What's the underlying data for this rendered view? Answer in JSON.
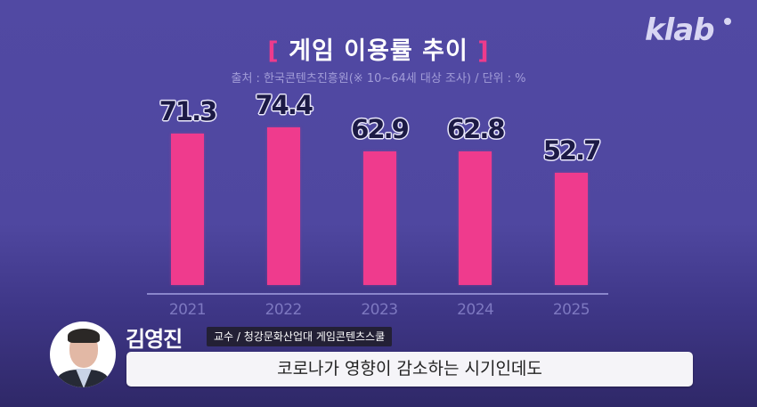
{
  "brand": {
    "logo_text": "klab"
  },
  "header": {
    "title_open_bracket": "[",
    "title": "게임 이용률 추이",
    "title_close_bracket": "]",
    "subtitle": "출처 : 한국콘텐츠진흥원(※ 10~64세 대상 조사) / 단위 : %"
  },
  "colors": {
    "background": "#5149a3",
    "bar": "#ef3b8d",
    "accent_bracket": "#ee3b8c",
    "axis": "#8a86cc",
    "value_label": "#1c1a45"
  },
  "chart_data": {
    "type": "bar",
    "title": "게임 이용률 추이",
    "subtitle": "출처 : 한국콘텐츠진흥원(※ 10~64세 대상 조사) / 단위 : %",
    "categories": [
      "2021",
      "2022",
      "2023",
      "2024",
      "2025"
    ],
    "values": [
      71.3,
      74.4,
      62.9,
      62.8,
      52.7
    ],
    "value_labels": [
      "71.3",
      "74.4",
      "62.9",
      "62.8",
      "52.7"
    ],
    "xlabel": "",
    "ylabel": "%",
    "grid": false,
    "legend": null,
    "unit": "%"
  },
  "speaker": {
    "name": "김영진",
    "role": "교수 / 청강문화산업대 게임콘텐츠스쿨"
  },
  "caption": {
    "text": "코로나가 영향이 감소하는 시기인데도"
  }
}
